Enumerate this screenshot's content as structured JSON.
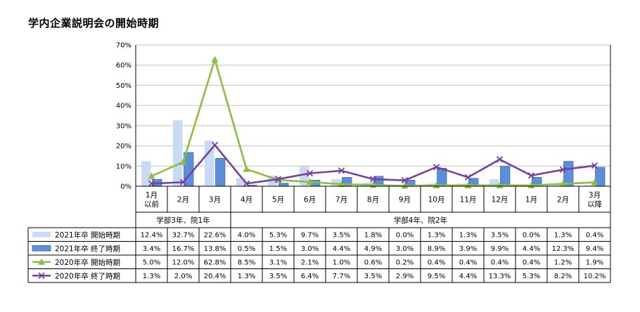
{
  "chart_data": {
    "type": "bar",
    "title": "学内企業説明会の開始時期",
    "xlabel": "",
    "ylabel": "",
    "ylim": [
      0,
      70
    ],
    "yticks": [
      "0%",
      "10%",
      "20%",
      "30%",
      "40%",
      "50%",
      "60%",
      "70%"
    ],
    "grid": true,
    "legend": "table-left",
    "categories": [
      [
        "1月",
        "以前"
      ],
      [
        "2月"
      ],
      [
        "3月"
      ],
      [
        "4月"
      ],
      [
        "5月"
      ],
      [
        "6月"
      ],
      [
        "7月"
      ],
      [
        "8月"
      ],
      [
        "9月"
      ],
      [
        "10月"
      ],
      [
        "11月"
      ],
      [
        "12月"
      ],
      [
        "1月"
      ],
      [
        "2月"
      ],
      [
        "3月",
        "以降"
      ]
    ],
    "groups": [
      {
        "label": "学部3年、院1年",
        "from": 0,
        "to": 2
      },
      {
        "label": "学部4年、院2年",
        "from": 3,
        "to": 14
      }
    ],
    "series": [
      {
        "name": "2021年卒 開始時期",
        "kind": "bar",
        "color": "#c9daf5",
        "values": [
          12.4,
          32.7,
          22.6,
          4.0,
          5.3,
          9.7,
          3.5,
          1.8,
          0.0,
          1.3,
          1.3,
          3.5,
          0.0,
          1.3,
          0.4
        ],
        "labels": [
          "12.4%",
          "32.7%",
          "22.6%",
          "4.0%",
          "5.3%",
          "9.7%",
          "3.5%",
          "1.8%",
          "0.0%",
          "1.3%",
          "1.3%",
          "3.5%",
          "0.0%",
          "1.3%",
          "0.4%"
        ]
      },
      {
        "name": "2021年卒 終了時期",
        "kind": "bar",
        "color": "#5b8fd9",
        "values": [
          3.4,
          16.7,
          13.8,
          0.5,
          1.5,
          3.0,
          4.4,
          4.9,
          3.0,
          8.9,
          3.9,
          9.9,
          4.4,
          12.3,
          9.4
        ],
        "labels": [
          "3.4%",
          "16.7%",
          "13.8%",
          "0.5%",
          "1.5%",
          "3.0%",
          "4.4%",
          "4.9%",
          "3.0%",
          "8.9%",
          "3.9%",
          "9.9%",
          "4.4%",
          "12.3%",
          "9.4%"
        ]
      },
      {
        "name": "2020年卒 開始時期",
        "kind": "line",
        "color": "#8cbf3f",
        "marker": "triangle",
        "values": [
          5.0,
          12.0,
          62.8,
          8.5,
          3.1,
          2.1,
          1.0,
          0.6,
          0.2,
          0.4,
          0.4,
          0.4,
          0.4,
          1.2,
          1.9
        ],
        "labels": [
          "5.0%",
          "12.0%",
          "62.8%",
          "8.5%",
          "3.1%",
          "2.1%",
          "1.0%",
          "0.6%",
          "0.2%",
          "0.4%",
          "0.4%",
          "0.4%",
          "0.4%",
          "1.2%",
          "1.9%"
        ]
      },
      {
        "name": "2020年卒 終了時期",
        "kind": "line",
        "color": "#7a3fa0",
        "marker": "x",
        "values": [
          1.3,
          2.0,
          20.4,
          1.3,
          3.5,
          6.4,
          7.7,
          3.5,
          2.9,
          9.5,
          4.4,
          13.3,
          5.3,
          8.2,
          10.2
        ],
        "labels": [
          "1.3%",
          "2.0%",
          "20.4%",
          "1.3%",
          "3.5%",
          "6.4%",
          "7.7%",
          "3.5%",
          "2.9%",
          "9.5%",
          "4.4%",
          "13.3%",
          "5.3%",
          "8.2%",
          "10.2%"
        ]
      }
    ]
  }
}
